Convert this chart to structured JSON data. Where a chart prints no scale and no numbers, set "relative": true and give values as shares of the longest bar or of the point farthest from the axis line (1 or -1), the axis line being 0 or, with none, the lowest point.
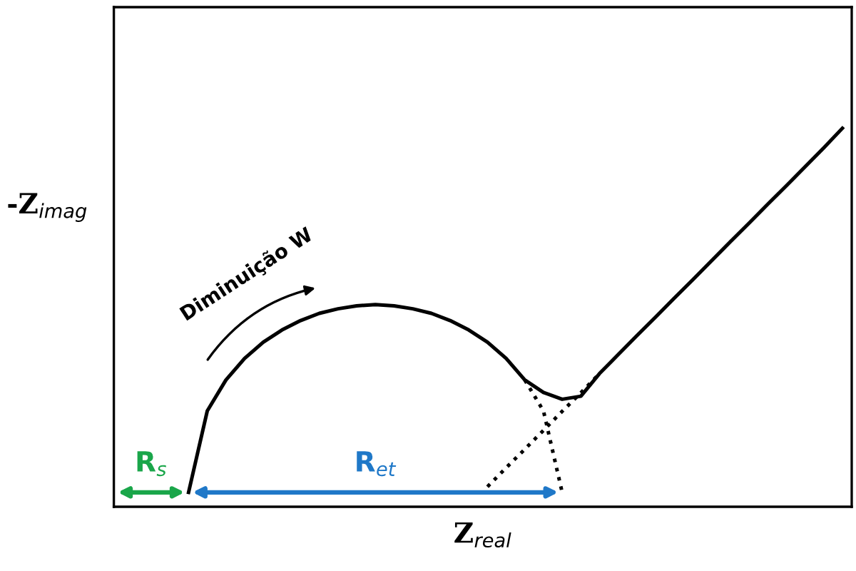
{
  "chart_data": {
    "type": "line",
    "relative": true,
    "xlabel": "Z$_{real}$",
    "ylabel": "-Z$_{imag}$",
    "categories": [
      null,
      null,
      null,
      null,
      null,
      null,
      null,
      null,
      null,
      null,
      null,
      null,
      null,
      null,
      null,
      null,
      null,
      null,
      null,
      null,
      null,
      null,
      null,
      null,
      null,
      null,
      null,
      null,
      null,
      null,
      null,
      null,
      null,
      null,
      null,
      null
    ],
    "series": [
      {
        "color": "#000000",
        "line_style": "solid",
        "values": [
          0.038,
          0.253,
          0.335,
          0.392,
          0.435,
          0.467,
          0.492,
          0.511,
          0.523,
          0.531,
          0.534,
          0.531,
          0.523,
          0.511,
          0.492,
          0.467,
          0.435,
          0.392,
          0.335,
          0.302,
          0.284,
          0.292,
          0.352,
          0.402,
          0.452,
          0.501,
          0.551,
          0.6,
          0.65,
          0.7,
          0.749,
          0.799,
          0.848,
          0.898,
          0.948,
          1.0
        ]
      },
      {
        "color": "#000000",
        "line_style": "dotted",
        "values": [
          null,
          null,
          null,
          null,
          null,
          null,
          null,
          null,
          null,
          null,
          null,
          null,
          null,
          null,
          null,
          null,
          null,
          null,
          0.335,
          0.253,
          0.038,
          null,
          null,
          null,
          null,
          null,
          null,
          null,
          null,
          null,
          null,
          null,
          null,
          null,
          null,
          null
        ]
      },
      {
        "color": "#000000",
        "line_style": "dotted",
        "values": [
          null,
          null,
          null,
          null,
          null,
          null,
          null,
          null,
          null,
          null,
          null,
          null,
          null,
          null,
          null,
          null,
          0.053,
          0.103,
          0.152,
          0.202,
          0.252,
          0.301,
          0.352,
          null,
          null,
          null,
          null,
          null,
          null,
          null,
          null,
          null,
          null,
          null,
          null,
          null
        ]
      }
    ],
    "annotations": [
      "R$_{s}$",
      "R$_{et}$",
      "Diminuição W"
    ]
  }
}
